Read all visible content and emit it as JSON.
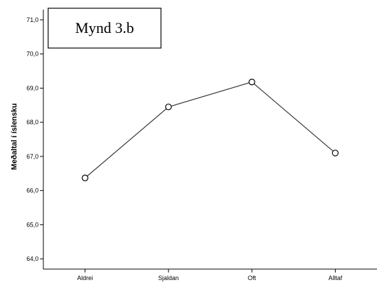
{
  "chart_data": {
    "type": "line",
    "title": "Mynd 3.b",
    "xlabel": "",
    "ylabel": "Meðaltal í íslensku",
    "categories": [
      "Aldrei",
      "Sjaldan",
      "Oft",
      "Alltaf"
    ],
    "values": [
      66.37,
      68.45,
      69.18,
      67.1
    ],
    "ylim": [
      63.7,
      71.3
    ],
    "yticks": [
      "64,0",
      "65,0",
      "66,0",
      "67,0",
      "68,0",
      "69,0",
      "70,0",
      "71,0"
    ],
    "ytick_values": [
      64,
      65,
      66,
      67,
      68,
      69,
      70,
      71
    ],
    "grid": false,
    "legend": "none",
    "line_color": "#333333",
    "marker": "open-circle",
    "plot_background": "#ffffff"
  }
}
